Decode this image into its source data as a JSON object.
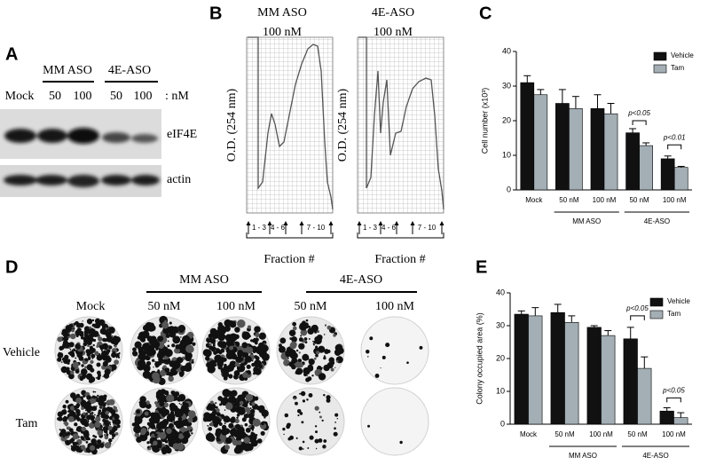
{
  "panel_a": {
    "label": "A",
    "groups": [
      "MM ASO",
      "4E-ASO"
    ],
    "lanes": [
      "Mock",
      "50",
      "100",
      "50",
      "100"
    ],
    "unit": ": nM",
    "bands": [
      "eIF4E",
      "actin"
    ]
  },
  "panel_b": {
    "label": "B",
    "profiles": [
      {
        "title": [
          "MM ASO",
          "100 nM"
        ]
      },
      {
        "title": [
          "4E-ASO",
          "100 nM"
        ]
      }
    ],
    "y_label": "O.D. (254 nm)",
    "fractions": [
      "1 - 3",
      "4 - 6",
      "7 - 10"
    ],
    "x_label": "Fraction #"
  },
  "panel_d": {
    "label": "D",
    "groups": [
      "MM ASO",
      "4E-ASO"
    ],
    "columns": [
      "Mock",
      "50 nM",
      "100 nM",
      "50 nM",
      "100 nM"
    ],
    "rows": [
      "Vehicle",
      "Tam"
    ]
  },
  "chart_data": [
    {
      "type": "bar",
      "panel_label": "C",
      "ylabel": "Cell number (x10³)",
      "categories": [
        "Mock",
        "50 nM",
        "100 nM",
        "50 nM",
        "100 nM"
      ],
      "group_labels": [
        "MM ASO",
        "4E-ASO"
      ],
      "series": [
        {
          "name": "Vehicle",
          "color": "#111111",
          "values": [
            31,
            25,
            23.5,
            16.5,
            9
          ],
          "errors": [
            2,
            4,
            4,
            1.2,
            0.8
          ]
        },
        {
          "name": "Tam",
          "color": "#a3aeb5",
          "values": [
            27.5,
            23.5,
            22,
            12.8,
            6.5
          ],
          "errors": [
            1.5,
            3.5,
            3,
            0.8,
            0.3
          ]
        }
      ],
      "ylim": [
        0,
        40
      ],
      "yticks": [
        0,
        10,
        20,
        30,
        40
      ],
      "legend": "upper right",
      "annotations": [
        "p<0.05",
        "p<0.01"
      ]
    },
    {
      "type": "bar",
      "panel_label": "E",
      "ylabel": "Colony occupied area (%)",
      "categories": [
        "Mock",
        "50 nM",
        "100 nM",
        "50 nM",
        "100 nM"
      ],
      "group_labels": [
        "MM ASO",
        "4E-ASO"
      ],
      "series": [
        {
          "name": "Vehicle",
          "color": "#111111",
          "values": [
            33.5,
            34,
            29.5,
            26,
            4
          ],
          "errors": [
            1,
            2.5,
            0.5,
            3.5,
            1
          ]
        },
        {
          "name": "Tam",
          "color": "#a3aeb5",
          "values": [
            33,
            31,
            27,
            17,
            2
          ],
          "errors": [
            2.5,
            2,
            1.5,
            3.5,
            1.5
          ]
        }
      ],
      "ylim": [
        0,
        40
      ],
      "yticks": [
        0,
        10,
        20,
        30,
        40
      ],
      "legend": "upper right",
      "annotations": [
        "p<0.05",
        "p<0.05"
      ]
    }
  ]
}
